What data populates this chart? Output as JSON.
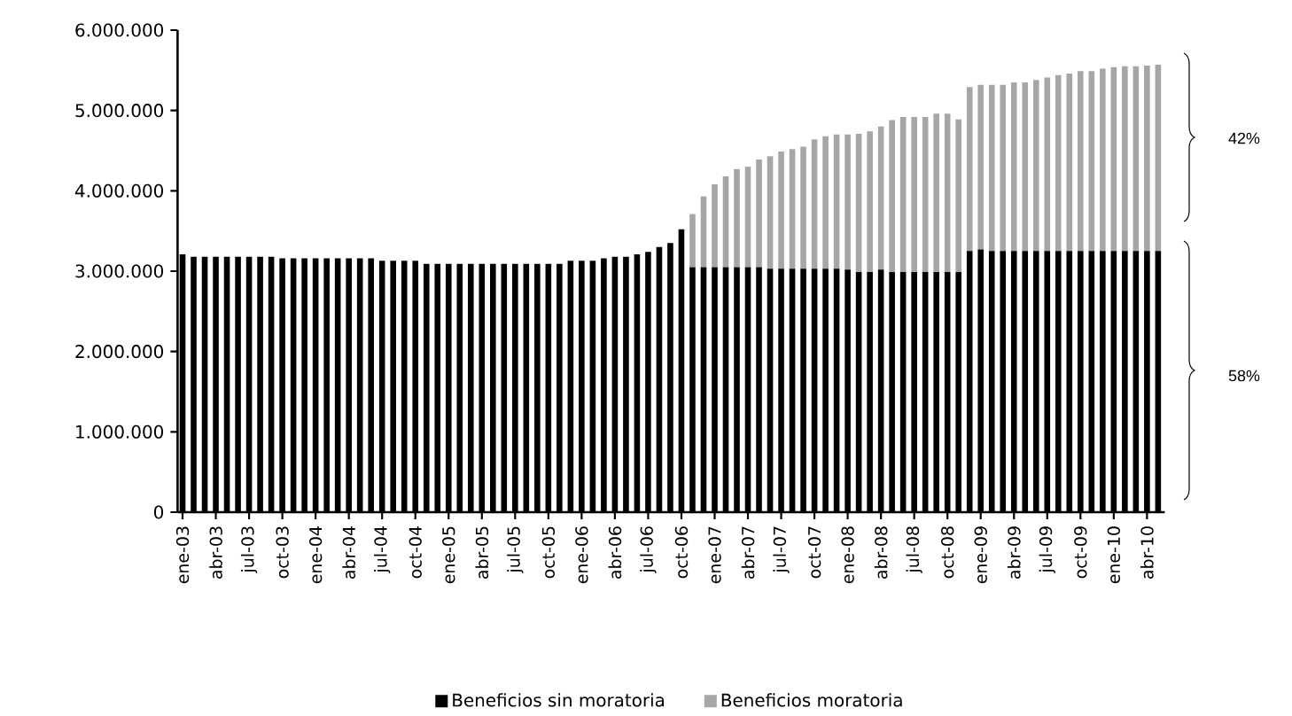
{
  "chart_data": {
    "type": "bar",
    "stacked": true,
    "categories": [
      "ene-03",
      null,
      null,
      "abr-03",
      null,
      null,
      "jul-03",
      null,
      null,
      "oct-03",
      null,
      null,
      "ene-04",
      null,
      null,
      "abr-04",
      null,
      null,
      "jul-04",
      null,
      null,
      "oct-04",
      null,
      null,
      "ene-05",
      null,
      null,
      "abr-05",
      null,
      null,
      "jul-05",
      null,
      null,
      "oct-05",
      null,
      null,
      "ene-06",
      null,
      null,
      "abr-06",
      null,
      null,
      "jul-06",
      null,
      null,
      "oct-06",
      null,
      null,
      "ene-07",
      null,
      null,
      "abr-07",
      null,
      null,
      "jul-07",
      null,
      null,
      "oct-07",
      null,
      null,
      "ene-08",
      null,
      null,
      "abr-08",
      null,
      null,
      "jul-08",
      null,
      null,
      "oct-08",
      null,
      null,
      "ene-09",
      null,
      null,
      "abr-09",
      null,
      null,
      "jul-09",
      null,
      null,
      "oct-09",
      null,
      null,
      "ene-10",
      null,
      null,
      "abr-10",
      null
    ],
    "series": [
      {
        "name": "Beneficios sin moratoria",
        "color": "#000000",
        "values": [
          3210000,
          3180000,
          3180000,
          3180000,
          3180000,
          3180000,
          3180000,
          3180000,
          3180000,
          3160000,
          3160000,
          3160000,
          3160000,
          3160000,
          3160000,
          3160000,
          3160000,
          3160000,
          3130000,
          3130000,
          3130000,
          3130000,
          3090000,
          3090000,
          3090000,
          3090000,
          3090000,
          3090000,
          3090000,
          3090000,
          3090000,
          3090000,
          3090000,
          3090000,
          3090000,
          3130000,
          3130000,
          3130000,
          3160000,
          3180000,
          3180000,
          3210000,
          3240000,
          3300000,
          3350000,
          3520000,
          3050000,
          3050000,
          3050000,
          3050000,
          3050000,
          3050000,
          3050000,
          3030000,
          3030000,
          3030000,
          3030000,
          3030000,
          3030000,
          3030000,
          3020000,
          2990000,
          2990000,
          3020000,
          2990000,
          2990000,
          2990000,
          2990000,
          2990000,
          2990000,
          2990000,
          3250000,
          3270000,
          3250000,
          3250000,
          3250000,
          3250000,
          3250000,
          3250000,
          3250000,
          3250000,
          3250000,
          3250000,
          3250000,
          3250000,
          3250000,
          3250000,
          3250000,
          3250000
        ]
      },
      {
        "name": "Beneficios moratoria",
        "color": "#a6a6a6",
        "values": [
          null,
          null,
          null,
          null,
          null,
          null,
          null,
          null,
          null,
          null,
          null,
          null,
          null,
          null,
          null,
          null,
          null,
          null,
          null,
          null,
          null,
          null,
          null,
          null,
          null,
          null,
          null,
          null,
          null,
          null,
          null,
          null,
          null,
          null,
          null,
          null,
          null,
          null,
          null,
          null,
          null,
          null,
          null,
          null,
          null,
          null,
          660000,
          880000,
          1030000,
          1130000,
          1220000,
          1250000,
          1340000,
          1400000,
          1460000,
          1490000,
          1520000,
          1610000,
          1650000,
          1670000,
          1680000,
          1720000,
          1750000,
          1780000,
          1890000,
          1930000,
          1930000,
          1930000,
          1970000,
          1970000,
          1900000,
          2040000,
          2050000,
          2070000,
          2070000,
          2100000,
          2100000,
          2130000,
          2160000,
          2190000,
          2210000,
          2240000,
          2240000,
          2270000,
          2290000,
          2300000,
          2300000,
          2310000,
          2320000
        ]
      }
    ],
    "ylim": [
      0,
      6000000
    ],
    "yticks": [
      0,
      {
        "value": 1000000,
        "label": "1.000.000"
      },
      {
        "value": 2000000,
        "label": "2.000.000"
      },
      {
        "value": 3000000,
        "label": "3.000.000"
      },
      {
        "value": 4000000,
        "label": "4.000.000"
      },
      {
        "value": 5000000,
        "label": "5.000.000"
      },
      {
        "value": 6000000,
        "label": "6.000.000"
      }
    ],
    "legend": "bottom",
    "annotations": [
      "42%",
      "58%"
    ]
  }
}
